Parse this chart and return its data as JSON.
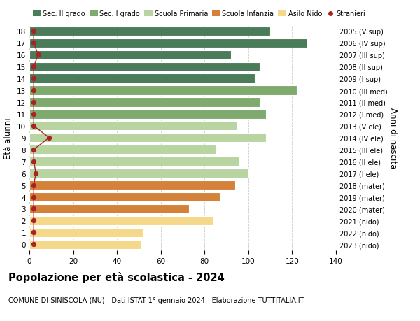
{
  "ages": [
    18,
    17,
    16,
    15,
    14,
    13,
    12,
    11,
    10,
    9,
    8,
    7,
    6,
    5,
    4,
    3,
    2,
    1,
    0
  ],
  "right_labels": [
    "2005 (V sup)",
    "2006 (IV sup)",
    "2007 (III sup)",
    "2008 (II sup)",
    "2009 (I sup)",
    "2010 (III med)",
    "2011 (II med)",
    "2012 (I med)",
    "2013 (V ele)",
    "2014 (IV ele)",
    "2015 (III ele)",
    "2016 (II ele)",
    "2017 (I ele)",
    "2018 (mater)",
    "2019 (mater)",
    "2020 (mater)",
    "2021 (nido)",
    "2022 (nido)",
    "2023 (nido)"
  ],
  "bar_values": [
    110,
    127,
    92,
    105,
    103,
    122,
    105,
    108,
    95,
    108,
    85,
    96,
    100,
    94,
    87,
    73,
    84,
    52,
    51
  ],
  "bar_colors": [
    "#4a7c59",
    "#4a7c59",
    "#4a7c59",
    "#4a7c59",
    "#4a7c59",
    "#7faa6e",
    "#7faa6e",
    "#7faa6e",
    "#b8d4a0",
    "#b8d4a0",
    "#b8d4a0",
    "#b8d4a0",
    "#b8d4a0",
    "#d4813a",
    "#d4813a",
    "#d4813a",
    "#f5d88a",
    "#f5d88a",
    "#f5d88a"
  ],
  "stranieri_values": [
    2,
    2,
    4,
    2,
    2,
    2,
    2,
    2,
    2,
    9,
    2,
    2,
    3,
    2,
    2,
    2,
    2,
    2,
    2
  ],
  "legend_labels": [
    "Sec. II grado",
    "Sec. I grado",
    "Scuola Primaria",
    "Scuola Infanzia",
    "Asilo Nido",
    "Stranieri"
  ],
  "legend_colors": [
    "#4a7c59",
    "#7faa6e",
    "#b8d4a0",
    "#d4813a",
    "#f5d88a",
    "#aa2222"
  ],
  "title": "Popolazione per età scolastica - 2024",
  "subtitle": "COMUNE DI SINISCOLA (NU) - Dati ISTAT 1° gennaio 2024 - Elaborazione TUTTITALIA.IT",
  "ylabel_left": "Età alunni",
  "ylabel_right": "Anni di nascita",
  "xlim": [
    0,
    140
  ],
  "xticks": [
    0,
    20,
    40,
    60,
    80,
    100,
    120,
    140
  ],
  "ylim": [
    -0.5,
    18.5
  ],
  "background_color": "#ffffff",
  "bar_height": 0.78
}
